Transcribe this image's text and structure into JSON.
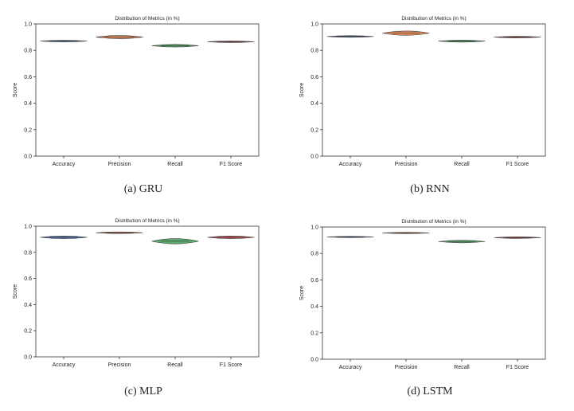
{
  "chart_data": [
    {
      "type": "violin",
      "title": "Distribution of Metrics (in %)",
      "xlabel": "",
      "ylabel": "Score",
      "ylim": [
        0.0,
        1.0
      ],
      "yticks": [
        "0.0",
        "0.2",
        "0.4",
        "0.6",
        "0.8",
        "1.0"
      ],
      "categories": [
        "Accuracy",
        "Precision",
        "Recall",
        "F1 Score"
      ],
      "values": [
        0.87,
        0.9,
        0.835,
        0.865
      ],
      "spread": [
        0.006,
        0.012,
        0.01,
        0.006
      ],
      "caption": "(a) GRU"
    },
    {
      "type": "violin",
      "title": "Distribution of Metrics (in %)",
      "xlabel": "",
      "ylabel": "Score",
      "ylim": [
        0.0,
        1.0
      ],
      "yticks": [
        "0.0",
        "0.2",
        "0.4",
        "0.6",
        "0.8",
        "1.0"
      ],
      "categories": [
        "Accuracy",
        "Precision",
        "Recall",
        "F1 Score"
      ],
      "values": [
        0.905,
        0.93,
        0.87,
        0.9
      ],
      "spread": [
        0.006,
        0.016,
        0.008,
        0.006
      ],
      "caption": "(b) RNN"
    },
    {
      "type": "violin",
      "title": "Distribution of Metrics (in %)",
      "xlabel": "",
      "ylabel": "Score",
      "ylim": [
        0.0,
        1.0
      ],
      "yticks": [
        "0.0",
        "0.2",
        "0.4",
        "0.6",
        "0.8",
        "1.0"
      ],
      "categories": [
        "Accuracy",
        "Precision",
        "Recall",
        "F1 Score"
      ],
      "values": [
        0.915,
        0.95,
        0.885,
        0.915
      ],
      "spread": [
        0.01,
        0.006,
        0.02,
        0.01
      ],
      "caption": "(c) MLP"
    },
    {
      "type": "violin",
      "title": "Distribution of Metrics (in %)",
      "xlabel": "",
      "ylabel": "Score",
      "ylim": [
        0.0,
        1.0
      ],
      "yticks": [
        "0.0",
        "0.2",
        "0.4",
        "0.6",
        "0.8",
        "1.0"
      ],
      "categories": [
        "Accuracy",
        "Precision",
        "Recall",
        "F1 Score"
      ],
      "values": [
        0.925,
        0.955,
        0.89,
        0.92
      ],
      "spread": [
        0.005,
        0.005,
        0.01,
        0.006
      ],
      "caption": "(d) LSTM"
    }
  ],
  "colors": {
    "series": [
      "#4c72b0",
      "#dd8452",
      "#55a868",
      "#c44e52"
    ],
    "axis": "#333333",
    "text": "#222222"
  }
}
